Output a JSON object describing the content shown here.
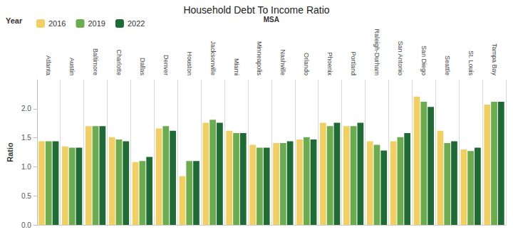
{
  "chart_data": {
    "type": "bar",
    "title": "Household Debt To Income Ratio",
    "legend_title": "Year",
    "x_label": "MSA",
    "y_label": "Ratio",
    "categories": [
      "Atlanta",
      "Austin",
      "Baltimore",
      "Charlotte",
      "Dallas",
      "Denver",
      "Houston",
      "Jacksonville",
      "Miami",
      "Minneapolis",
      "Nashville",
      "Orlando",
      "Phoenix",
      "Portland",
      "Raleigh-Durham",
      "San Antonio",
      "San Diego",
      "Seattle",
      "St. Louis",
      "Tampa Bay"
    ],
    "series": [
      {
        "name": "2016",
        "color": "#f2cf63",
        "values": [
          1.44,
          1.35,
          1.7,
          1.51,
          1.08,
          1.66,
          0.84,
          1.76,
          1.62,
          1.38,
          1.41,
          1.47,
          1.76,
          1.7,
          1.44,
          1.44,
          2.21,
          1.62,
          1.3,
          2.07
        ]
      },
      {
        "name": "2019",
        "color": "#6aac4e",
        "values": [
          1.44,
          1.33,
          1.7,
          1.47,
          1.1,
          1.7,
          1.1,
          1.81,
          1.58,
          1.33,
          1.41,
          1.51,
          1.7,
          1.7,
          1.38,
          1.51,
          2.12,
          1.41,
          1.27,
          2.12
        ]
      },
      {
        "name": "2022",
        "color": "#1e6b35",
        "values": [
          1.44,
          1.33,
          1.7,
          1.44,
          1.17,
          1.62,
          1.1,
          1.76,
          1.58,
          1.33,
          1.44,
          1.47,
          1.76,
          1.76,
          1.28,
          1.58,
          2.03,
          1.44,
          1.33,
          2.12
        ]
      }
    ],
    "ylim": [
      0,
      2.5
    ],
    "yticks": [
      {
        "value": 0,
        "label": "0.0"
      },
      0.5,
      {
        "value": 1,
        "label": "1.0"
      },
      1.5,
      {
        "value": 2,
        "label": "2.0"
      }
    ],
    "grid": false,
    "legend": "top-left"
  }
}
